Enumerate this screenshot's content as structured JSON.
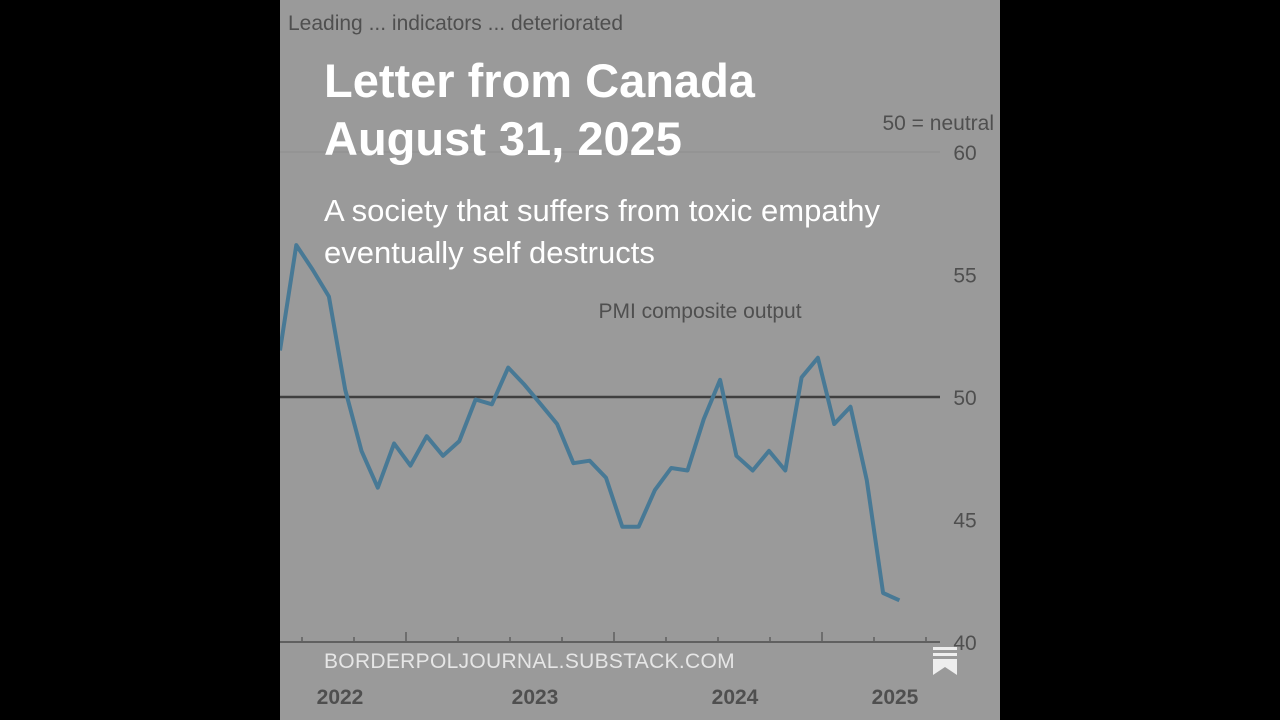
{
  "post": {
    "title_line1": "Letter from Canada",
    "title_line2": "August 31, 2025",
    "subtitle": "A society that suffers from toxic empathy eventually self destructs",
    "footer": "BORDERPOLJOURNAL.SUBSTACK.COM",
    "icons": {
      "save": "bookmark-stack-icon"
    }
  },
  "chart_data": {
    "type": "line",
    "title": "Leading ... indicators ... deteriorated",
    "subtitle": "PMI composite output",
    "annotation": "50 = neutral",
    "xlabel": "",
    "ylabel": "",
    "x_tick_labels": [
      "2022",
      "2023",
      "2024",
      "2025"
    ],
    "y_ticks": [
      40,
      45,
      50,
      55,
      60
    ],
    "ylim": [
      40,
      60
    ],
    "reference_line": 50,
    "line_color": "#1f6b96",
    "values": [
      51.9,
      56.2,
      55.2,
      54.1,
      50.3,
      47.8,
      46.3,
      48.1,
      47.2,
      48.4,
      47.6,
      48.2,
      49.9,
      49.7,
      51.2,
      50.5,
      49.7,
      48.9,
      47.3,
      47.4,
      46.7,
      44.7,
      44.7,
      46.2,
      47.1,
      47.0,
      49.1,
      50.7,
      47.6,
      47.0,
      47.8,
      47.0,
      50.8,
      51.6,
      48.9,
      49.6,
      46.6,
      42.0,
      41.7
    ]
  }
}
